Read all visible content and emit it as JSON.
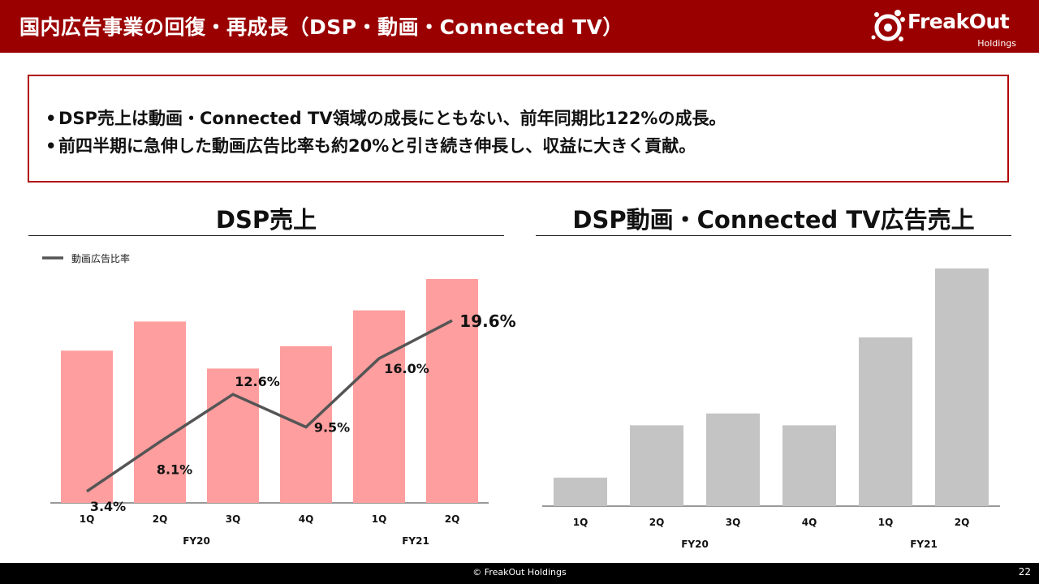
{
  "header": {
    "title": "国内広告事業の回復・再成長（DSP・動画・Connected TV）",
    "logo_text": "FreakOut",
    "logo_sub": "Holdings"
  },
  "summary": {
    "bullets": [
      "DSP売上は動画・Connected TV領域の成長にともない、前年同期比122%の成長。",
      "前四半期に急伸した動画広告比率も約20%と引き続き伸長し、収益に大きく貢献。"
    ]
  },
  "colors": {
    "header_bg": "#9b0000",
    "bar_pink": "#ff9e9e",
    "bar_gray": "#c4c4c4",
    "line": "#555555"
  },
  "chart_data": [
    {
      "type": "bar",
      "title": "DSP売上",
      "categories": [
        "1Q",
        "2Q",
        "3Q",
        "4Q",
        "1Q",
        "2Q"
      ],
      "groups": [
        {
          "label": "FY20",
          "span": [
            0,
            3
          ]
        },
        {
          "label": "FY21",
          "span": [
            4,
            5
          ]
        }
      ],
      "values": [
        68,
        81,
        60,
        70,
        86,
        100
      ],
      "ylim": [
        0,
        100
      ],
      "value_note": "relative bar heights (no printed axis)",
      "line_series": {
        "name": "動画広告比率",
        "type": "line",
        "values": [
          3.4,
          8.1,
          12.6,
          9.5,
          16.0,
          19.6
        ],
        "labels": [
          "3.4%",
          "8.1%",
          "12.6%",
          "9.5%",
          "16.0%",
          "19.6%"
        ],
        "ylim": [
          0,
          25
        ]
      },
      "legend": "top-left"
    },
    {
      "type": "bar",
      "title": "DSP動画・Connected TV広告売上",
      "categories": [
        "1Q",
        "2Q",
        "3Q",
        "4Q",
        "1Q",
        "2Q"
      ],
      "groups": [
        {
          "label": "FY20",
          "span": [
            0,
            3
          ]
        },
        {
          "label": "FY21",
          "span": [
            4,
            5
          ]
        }
      ],
      "values": [
        12,
        34,
        39,
        34,
        71,
        100
      ],
      "ylim": [
        0,
        100
      ],
      "value_note": "relative bar heights (no printed axis)"
    }
  ],
  "footer": {
    "copyright": "© FreakOut Holdings",
    "page": "22"
  }
}
